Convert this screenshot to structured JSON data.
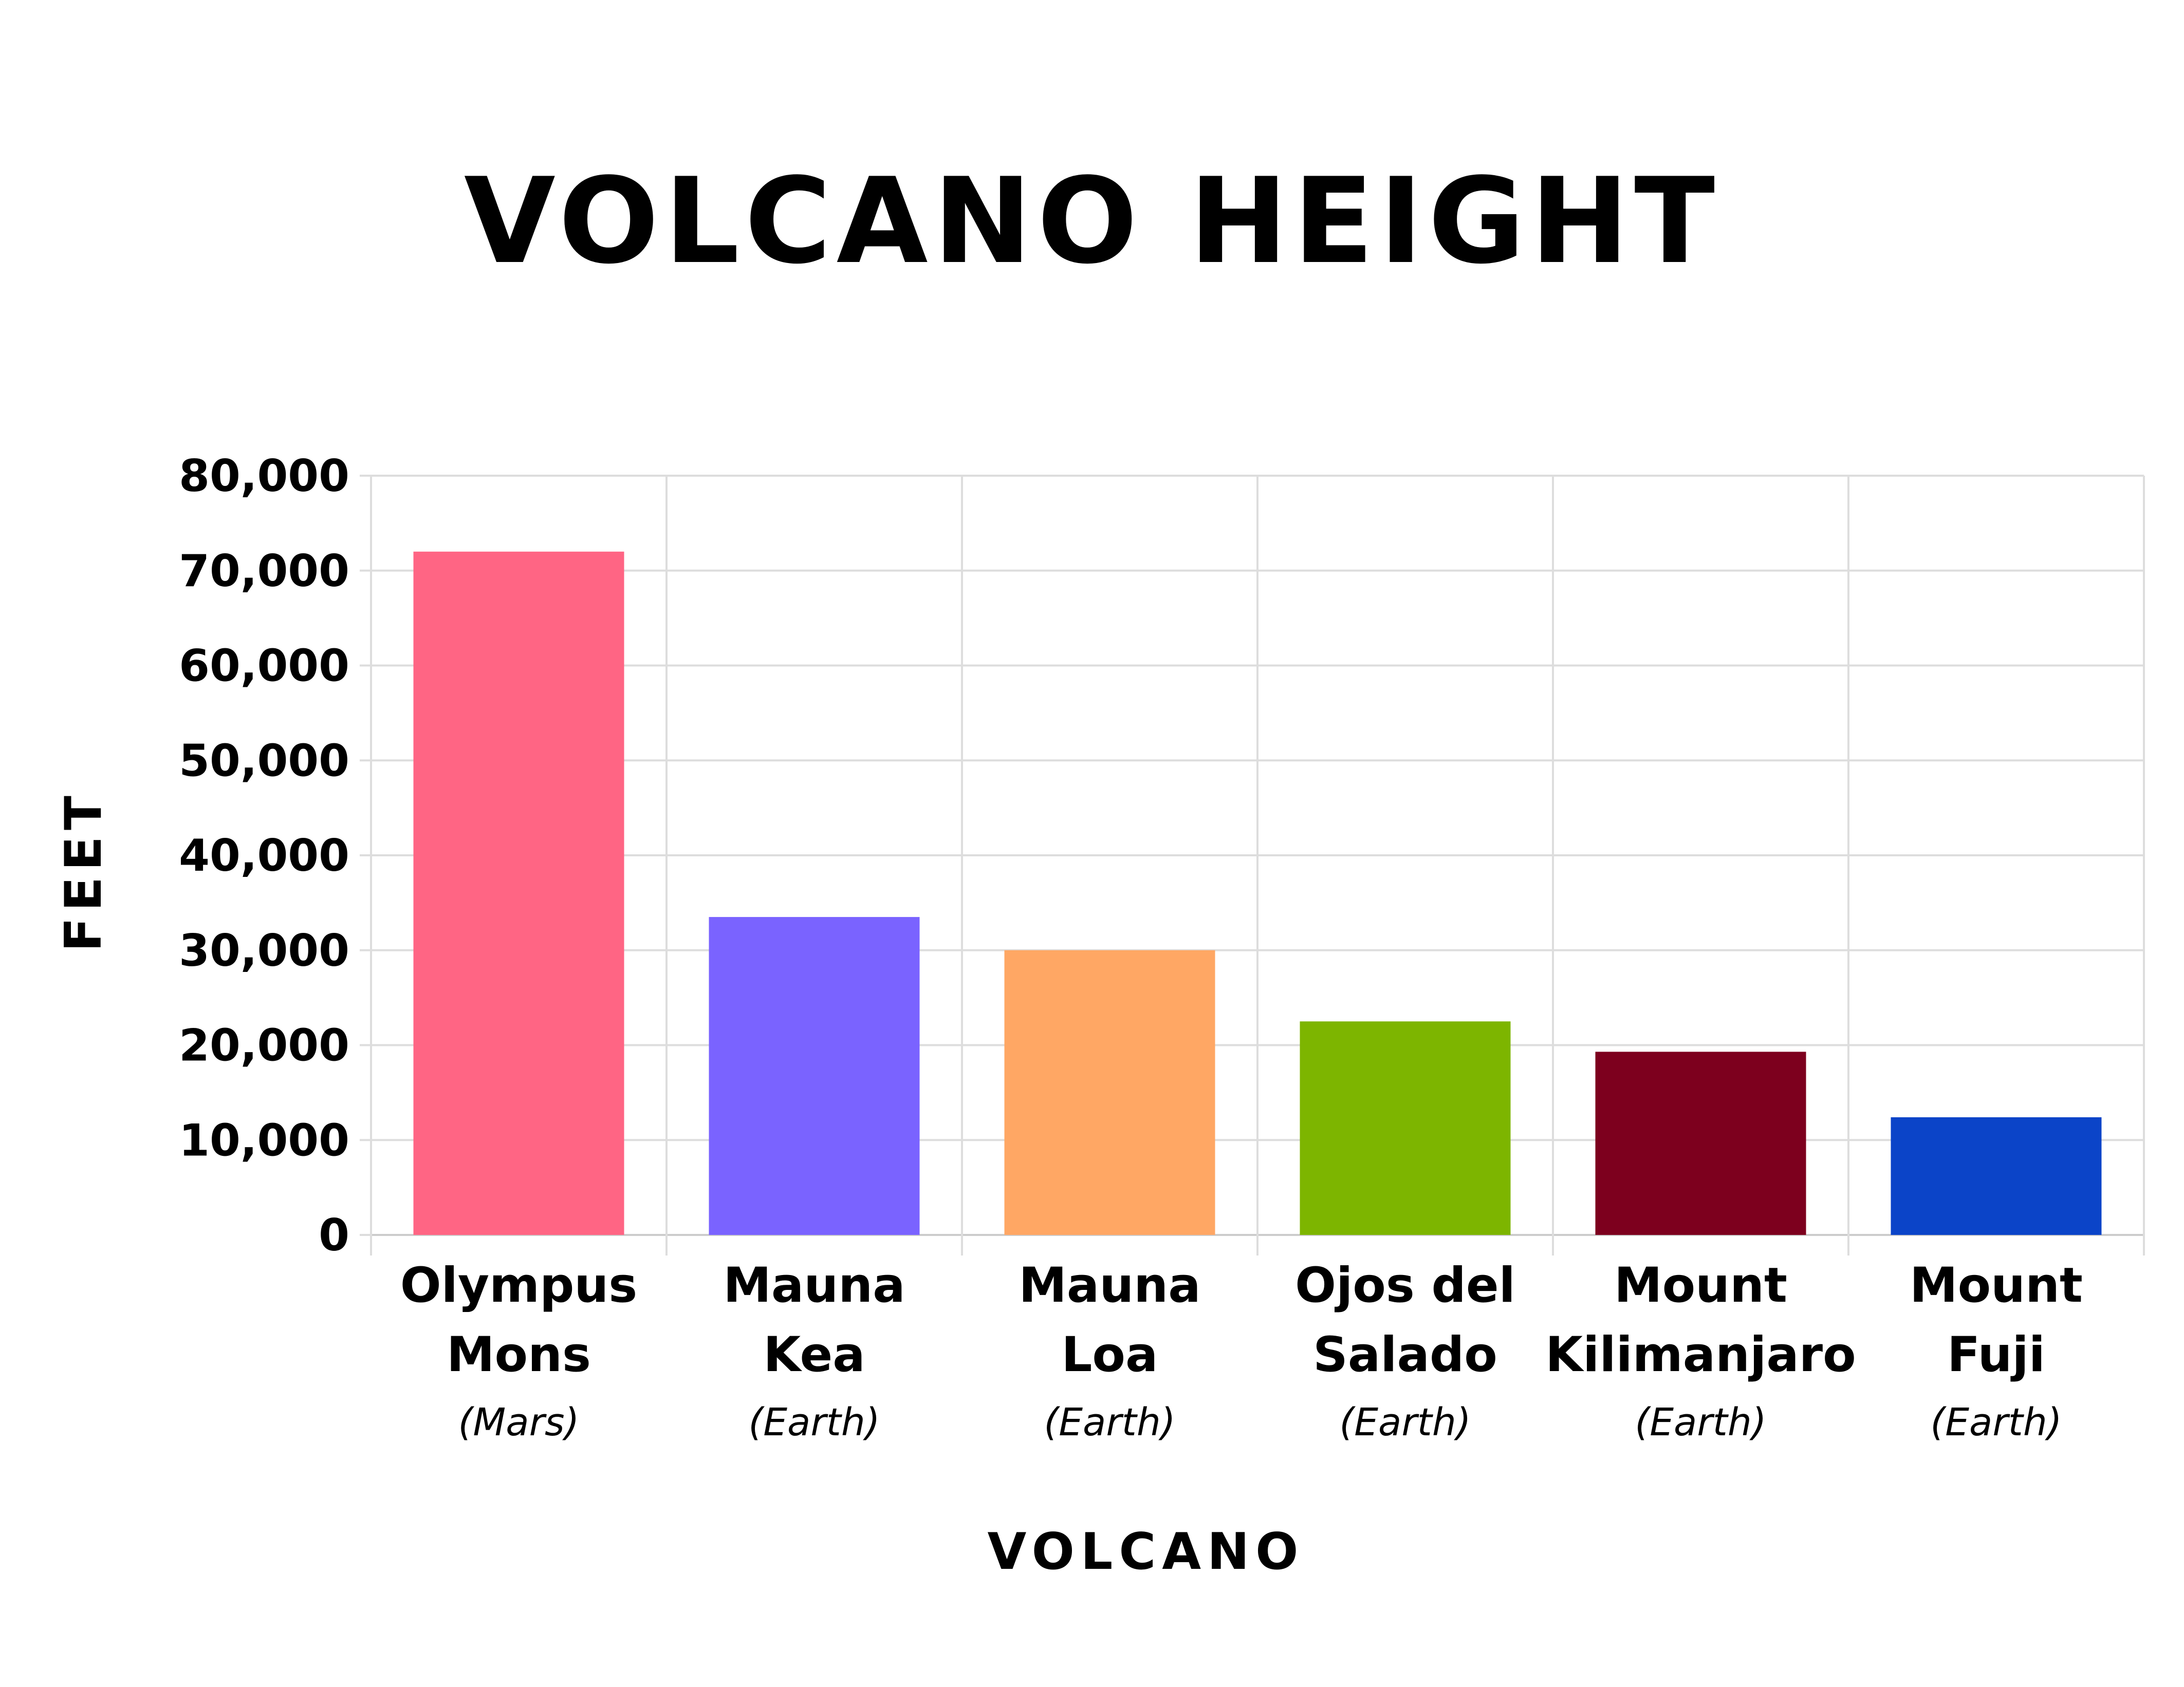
{
  "chart_data": {
    "type": "bar",
    "title": "VOLCANO HEIGHT",
    "xlabel": "VOLCANO",
    "ylabel": "FEET",
    "ylim": [
      0,
      80000
    ],
    "yticks": [
      0,
      10000,
      20000,
      30000,
      40000,
      50000,
      60000,
      70000,
      80000
    ],
    "ytick_labels": [
      "0",
      "10,000",
      "20,000",
      "30,000",
      "40,000",
      "50,000",
      "60,000",
      "70,000",
      "80,000"
    ],
    "grid": true,
    "categories": [
      {
        "name_lines": [
          "Olympus",
          "Mons"
        ],
        "sub": "(Mars)"
      },
      {
        "name_lines": [
          "Mauna",
          "Kea"
        ],
        "sub": "(Earth)"
      },
      {
        "name_lines": [
          "Mauna",
          "Loa"
        ],
        "sub": "(Earth)"
      },
      {
        "name_lines": [
          "Ojos del",
          "Salado"
        ],
        "sub": "(Earth)"
      },
      {
        "name_lines": [
          "Mount",
          "Kilimanjaro"
        ],
        "sub": "(Earth)"
      },
      {
        "name_lines": [
          "Mount",
          "Fuji"
        ],
        "sub": "(Earth)"
      }
    ],
    "values": [
      72000,
      33500,
      30000,
      22500,
      19300,
      12400
    ],
    "colors": [
      "#ff6584",
      "#7a63ff",
      "#ffa764",
      "#7db500",
      "#7d001e",
      "#0b44c8"
    ]
  }
}
